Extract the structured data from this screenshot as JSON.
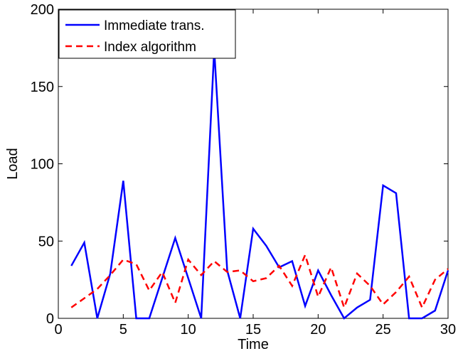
{
  "chart_data": {
    "type": "line",
    "title": "",
    "xlabel": "Time",
    "ylabel": "Load",
    "xlim": [
      0,
      30
    ],
    "ylim": [
      0,
      200
    ],
    "xticks": [
      0,
      5,
      10,
      15,
      20,
      25,
      30
    ],
    "yticks": [
      0,
      50,
      100,
      150,
      200
    ],
    "xtick_labels": [
      "0",
      "5",
      "10",
      "15",
      "20",
      "25",
      "30"
    ],
    "ytick_labels": [
      "0",
      "50",
      "100",
      "150",
      "200"
    ],
    "grid": false,
    "legend_position": "top-left",
    "x": [
      1,
      2,
      3,
      4,
      5,
      6,
      7,
      8,
      9,
      10,
      11,
      12,
      13,
      14,
      15,
      16,
      17,
      18,
      19,
      20,
      21,
      22,
      23,
      24,
      25,
      26,
      27,
      28,
      29,
      30
    ],
    "series": [
      {
        "name": "Immediate trans.",
        "color": "#0000ff",
        "style": "solid",
        "values": [
          34,
          49,
          0,
          29,
          89,
          0,
          0,
          26,
          52,
          26,
          0,
          174,
          31,
          0,
          58,
          47,
          33,
          37,
          8,
          31,
          15,
          0,
          7,
          12,
          86,
          81,
          0,
          0,
          5,
          31
        ]
      },
      {
        "name": "Index algorithm",
        "color": "#ff0000",
        "style": "dashed",
        "values": [
          7,
          13,
          19,
          28,
          38,
          35,
          18,
          30,
          10,
          38,
          28,
          37,
          30,
          31,
          24,
          26,
          34,
          21,
          41,
          14,
          33,
          7,
          29,
          21,
          9,
          17,
          27,
          7,
          25,
          32
        ]
      }
    ]
  }
}
